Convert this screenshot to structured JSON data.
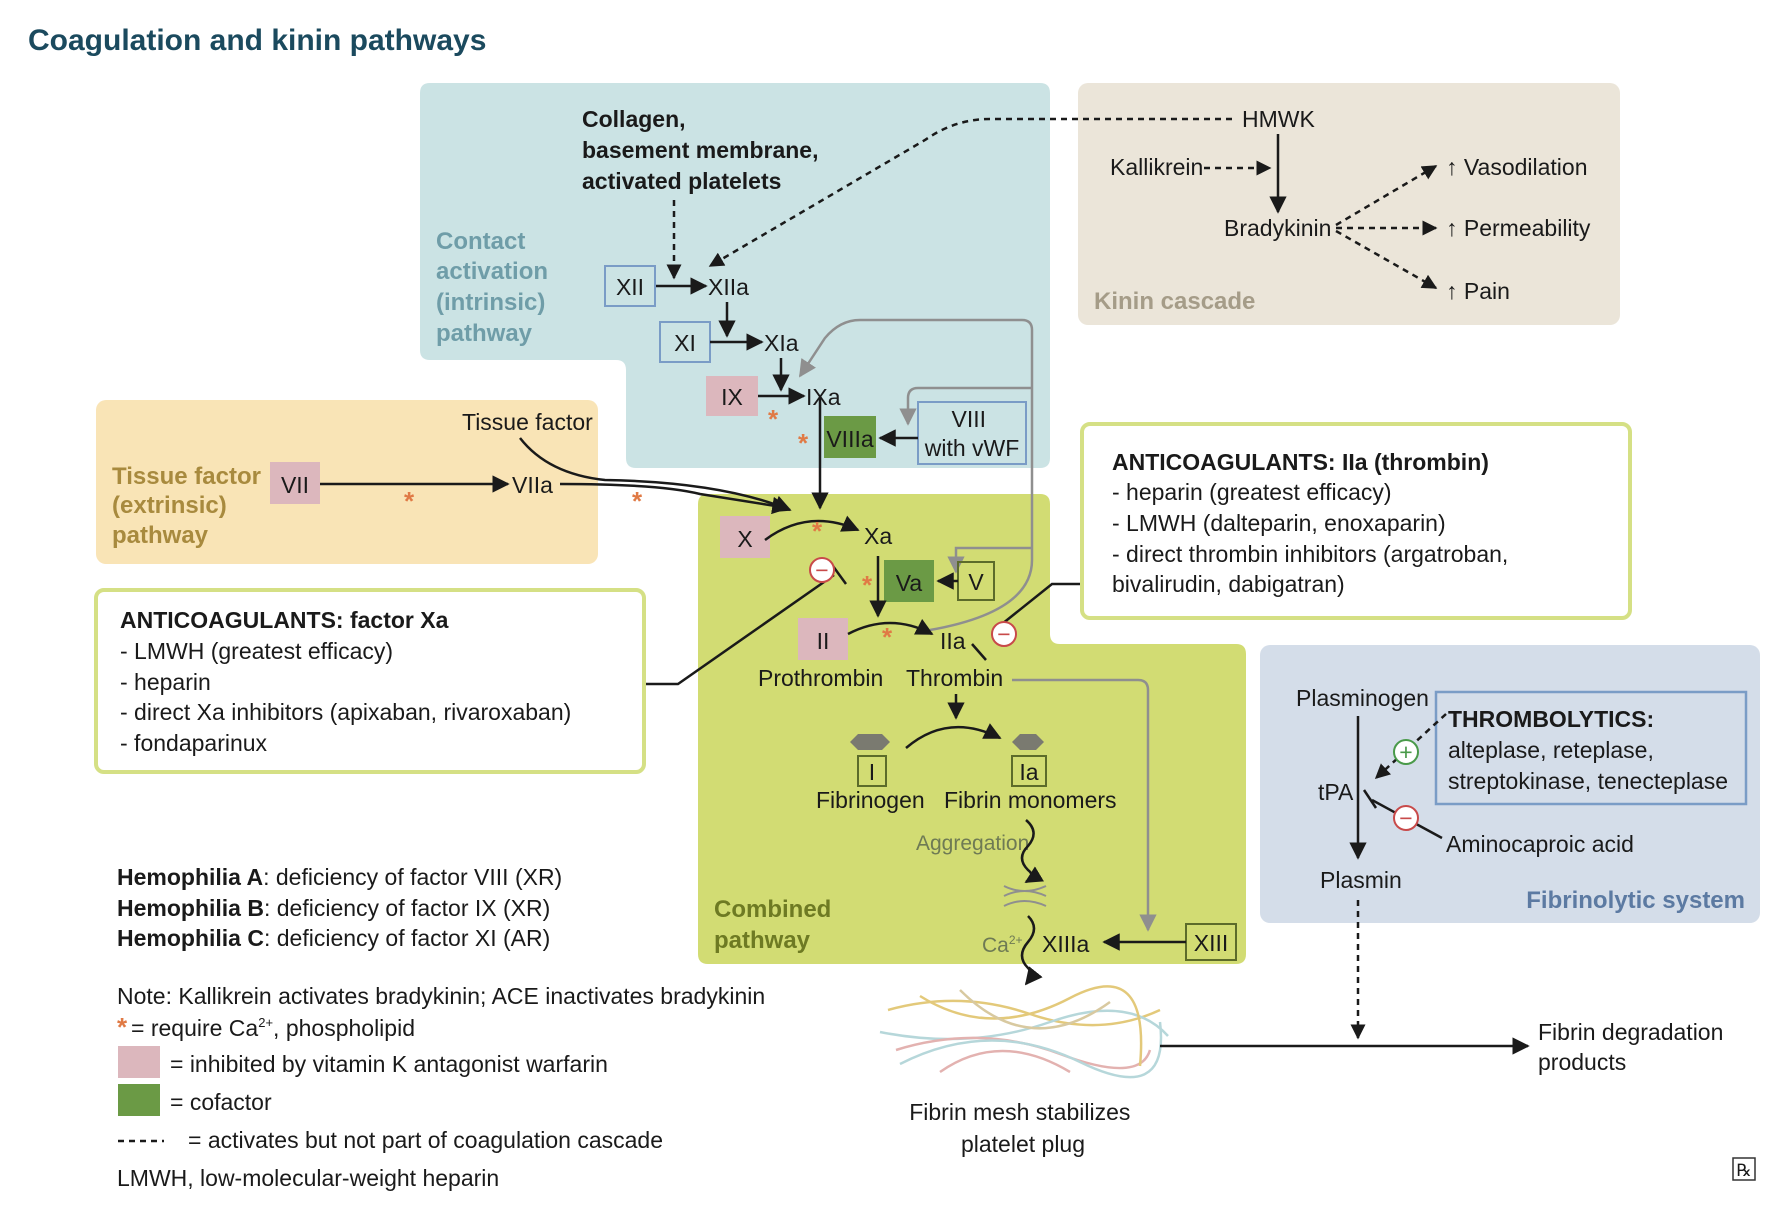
{
  "title": "Coagulation and kinin pathways",
  "regions": {
    "contact": [
      "Contact",
      "activation",
      "(intrinsic)",
      "pathway"
    ],
    "kinin": "Kinin cascade",
    "tissue": [
      "Tissue factor",
      "(extrinsic)",
      "pathway"
    ],
    "combined": [
      "Combined",
      "pathway"
    ],
    "fibrinolytic": "Fibrinolytic system"
  },
  "nodes": {
    "collagen": [
      "Collagen,",
      "basement membrane,",
      "activated platelets"
    ],
    "hmwk": "HMWK",
    "kallikrein": "Kallikrein",
    "bradykinin": "Bradykinin",
    "vasodilation": "↑ Vasodilation",
    "permeability": "↑ Permeability",
    "pain": "↑ Pain",
    "xii": "XII",
    "xiia": "XIIa",
    "xi": "XI",
    "xia": "XIa",
    "ix": "IX",
    "ixa": "IXa",
    "viiia": "VIIIa",
    "viii": [
      "VIII",
      "with vWF"
    ],
    "tissue_factor": "Tissue factor",
    "vii": "VII",
    "viia": "VIIa",
    "x": "X",
    "xa": "Xa",
    "va": "Va",
    "v": "V",
    "ii": "II",
    "iia": "IIa",
    "prothrombin": "Prothrombin",
    "thrombin": "Thrombin",
    "i": "I",
    "ia": "Ia",
    "fibrinogen": "Fibrinogen",
    "fibrin_monomers": "Fibrin monomers",
    "aggregation": "Aggregation",
    "ca": "Ca",
    "ca_sup": "2+",
    "xiiia": "XIIIa",
    "xiii": "XIII",
    "fibrin_mesh": [
      "Fibrin mesh stabilizes",
      "platelet plug"
    ],
    "plasminogen": "Plasminogen",
    "tpa": "tPA",
    "plasmin": "Plasmin",
    "aminocaproic": "Aminocaproic acid",
    "fdp": [
      "Fibrin degradation",
      "products"
    ]
  },
  "anticoag_xa": {
    "heading": "ANTICOAGULANTS: factor Xa",
    "items": [
      "- LMWH (greatest efficacy)",
      "- heparin",
      "- direct Xa inhibitors (apixaban, rivaroxaban)",
      "- fondaparinux"
    ]
  },
  "anticoag_iia": {
    "heading": "ANTICOAGULANTS: IIa (thrombin)",
    "items": [
      "-  heparin (greatest efficacy)",
      "-  LMWH (dalteparin, enoxaparin)",
      "-  direct thrombin inhibitors (argatroban,",
      "   bivalirudin, dabigatran)"
    ]
  },
  "thrombolytics": {
    "heading": "THROMBOLYTICS:",
    "items": [
      "alteplase, reteplase,",
      "streptokinase, tenecteplase"
    ]
  },
  "hemophilia": [
    {
      "name": "Hemophilia A",
      "text": ": deficiency of factor VIII (XR)"
    },
    {
      "name": "Hemophilia B",
      "text": ": deficiency of factor IX (XR)"
    },
    {
      "name": "Hemophilia C",
      "text": ": deficiency of factor XI (AR)"
    }
  ],
  "legend": {
    "note": "Note: Kallikrein activates bradykinin; ACE inactivates bradykinin",
    "star_text": " = require Ca",
    "star_sup": "2+",
    "star_tail": ", phospholipid",
    "pink": "= inhibited by vitamin K antagonist warfarin",
    "green": "= cofactor",
    "dashed": "= activates but not part of coagulation cascade",
    "abbrev": "LMWH, low-molecular-weight heparin"
  },
  "symbols": {
    "star": "*",
    "minus": "−",
    "plus": "+",
    "corner": "℞"
  },
  "colors": {
    "title": "#1b4a5e",
    "contact_bg": "#cbe3e4",
    "kinin_bg": "#ebe5d9",
    "tissue_bg": "#f9e4b6",
    "combined_bg": "#d2dc73",
    "fibrinolytic_bg": "#d4dde9",
    "pink": "#dcb7bd",
    "green": "#6b9a45",
    "box_border_green": "#d5e085",
    "box_border_blue": "#7a9cc6"
  }
}
